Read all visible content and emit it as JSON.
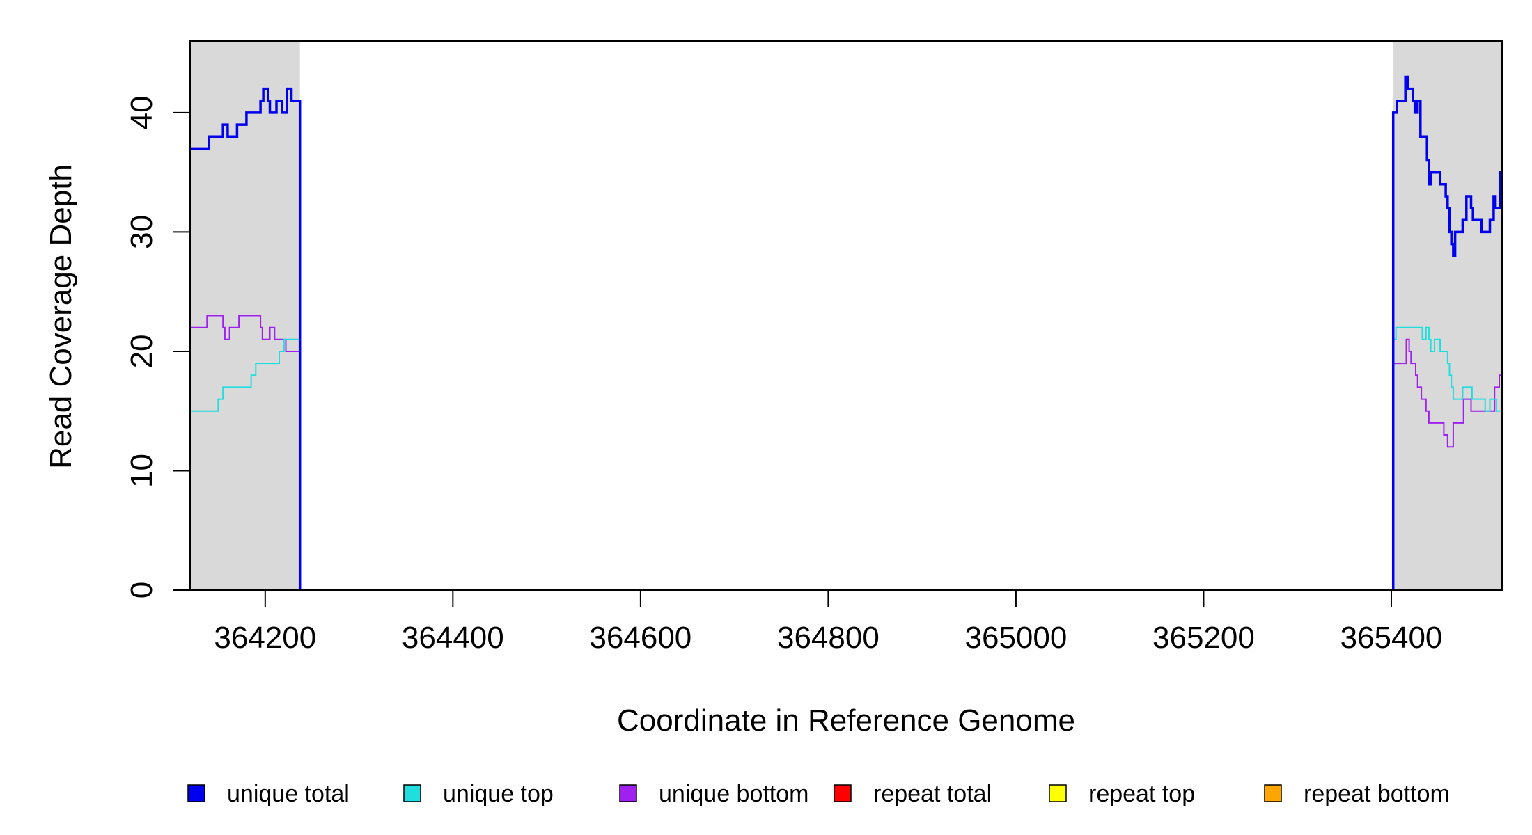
{
  "chart_data": {
    "type": "line",
    "xlabel": "Coordinate in Reference Genome",
    "ylabel": "Read Coverage Depth",
    "xlim": [
      364120,
      365518
    ],
    "ylim": [
      0,
      46
    ],
    "x_ticks": [
      364200,
      364400,
      364600,
      364800,
      365000,
      365200,
      365400
    ],
    "y_ticks": [
      0,
      10,
      20,
      30,
      40
    ],
    "grid": false,
    "legend_position": "bottom",
    "shaded_regions": [
      {
        "x_start": 364120,
        "x_end": 364237,
        "color": "#d9d9d9"
      },
      {
        "x_start": 365402,
        "x_end": 365518,
        "color": "#d9d9d9"
      }
    ],
    "series": [
      {
        "name": "unique total",
        "color": "#0000ee",
        "points": [
          [
            364120,
            37
          ],
          [
            364140,
            38
          ],
          [
            364155,
            39
          ],
          [
            364160,
            38
          ],
          [
            364165,
            38
          ],
          [
            364170,
            39
          ],
          [
            364180,
            40
          ],
          [
            364195,
            41
          ],
          [
            364198,
            42
          ],
          [
            364203,
            41
          ],
          [
            364205,
            40
          ],
          [
            364212,
            41
          ],
          [
            364218,
            40
          ],
          [
            364223,
            42
          ],
          [
            364228,
            41
          ],
          [
            364237,
            0
          ],
          [
            365402,
            40
          ],
          [
            365406,
            41
          ],
          [
            365415,
            43
          ],
          [
            365418,
            42
          ],
          [
            365423,
            41
          ],
          [
            365425,
            40
          ],
          [
            365428,
            41
          ],
          [
            365431,
            38
          ],
          [
            365438,
            36
          ],
          [
            365440,
            34
          ],
          [
            365442,
            35
          ],
          [
            365452,
            34
          ],
          [
            365458,
            33
          ],
          [
            365460,
            32
          ],
          [
            365462,
            30
          ],
          [
            365464,
            29
          ],
          [
            365466,
            28
          ],
          [
            365468,
            30
          ],
          [
            365476,
            31
          ],
          [
            365480,
            33
          ],
          [
            365485,
            32
          ],
          [
            365487,
            31
          ],
          [
            365496,
            30
          ],
          [
            365505,
            31
          ],
          [
            365509,
            33
          ],
          [
            365511,
            32
          ],
          [
            365516,
            35
          ],
          [
            365518,
            35
          ]
        ]
      },
      {
        "name": "unique top",
        "color": "#22dddd",
        "points": [
          [
            364120,
            15
          ],
          [
            364150,
            16
          ],
          [
            364155,
            17
          ],
          [
            364185,
            18
          ],
          [
            364190,
            19
          ],
          [
            364215,
            20
          ],
          [
            364220,
            21
          ],
          [
            364237,
            0
          ],
          [
            365402,
            21
          ],
          [
            365405,
            22
          ],
          [
            365433,
            21
          ],
          [
            365437,
            22
          ],
          [
            365440,
            21
          ],
          [
            365442,
            20
          ],
          [
            365446,
            21
          ],
          [
            365452,
            20
          ],
          [
            365460,
            19
          ],
          [
            365462,
            18
          ],
          [
            365464,
            17
          ],
          [
            365466,
            16
          ],
          [
            365476,
            17
          ],
          [
            365486,
            16
          ],
          [
            365500,
            15
          ],
          [
            365505,
            16
          ],
          [
            365512,
            15
          ],
          [
            365518,
            15
          ]
        ]
      },
      {
        "name": "unique bottom",
        "color": "#a020f0",
        "points": [
          [
            364120,
            22
          ],
          [
            364138,
            23
          ],
          [
            364155,
            22
          ],
          [
            364157,
            21
          ],
          [
            364162,
            22
          ],
          [
            364172,
            23
          ],
          [
            364195,
            22
          ],
          [
            364197,
            21
          ],
          [
            364205,
            22
          ],
          [
            364210,
            21
          ],
          [
            364222,
            20
          ],
          [
            364237,
            0
          ],
          [
            365402,
            19
          ],
          [
            365416,
            21
          ],
          [
            365419,
            20
          ],
          [
            365421,
            19
          ],
          [
            365426,
            18
          ],
          [
            365428,
            17
          ],
          [
            365432,
            16
          ],
          [
            365437,
            15
          ],
          [
            365440,
            14
          ],
          [
            365456,
            13
          ],
          [
            365460,
            12
          ],
          [
            365466,
            14
          ],
          [
            365477,
            16
          ],
          [
            365485,
            15
          ],
          [
            365510,
            17
          ],
          [
            365515,
            18
          ],
          [
            365518,
            18
          ]
        ]
      },
      {
        "name": "repeat total",
        "color": "#ff0000",
        "points": [
          [
            364120,
            0
          ],
          [
            365518,
            0
          ]
        ]
      },
      {
        "name": "repeat top",
        "color": "#ffff00",
        "points": [
          [
            364120,
            0
          ],
          [
            365518,
            0
          ]
        ]
      },
      {
        "name": "repeat bottom",
        "color": "#ffa500",
        "points": [
          [
            364120,
            0
          ],
          [
            365518,
            0
          ]
        ]
      }
    ]
  }
}
